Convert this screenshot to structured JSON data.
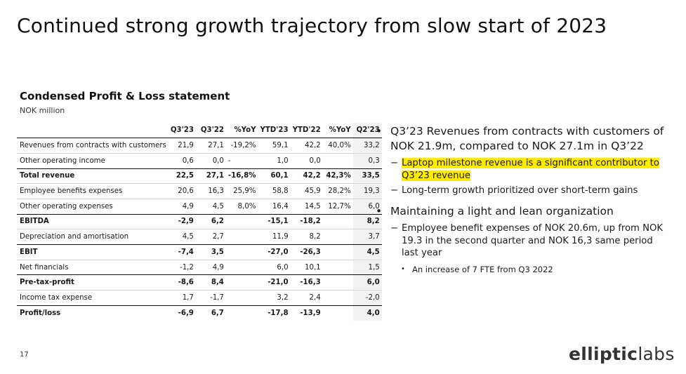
{
  "slide": {
    "title": "Continued strong growth trajectory from slow start of 2023",
    "page_number": "17"
  },
  "section": {
    "title": "Condensed Profit & Loss statement",
    "subtitle": "NOK million"
  },
  "table": {
    "headers": [
      "",
      "Q3'23",
      "Q3'22",
      "%YoY",
      "YTD'23",
      "YTD'22",
      "%YoY",
      "Q2'23"
    ],
    "rows": [
      {
        "label": "Revenues from contracts with customers",
        "cells": [
          "21,9",
          "27,1",
          "-19,2%",
          "59,1",
          "42,2",
          "40,0%",
          "33,2"
        ],
        "bold": false
      },
      {
        "label": "Other operating income",
        "cells": [
          "0,6",
          "0,0",
          "-",
          "1,0",
          "0,0",
          "",
          "0,3"
        ],
        "bold": false
      },
      {
        "label": "Total revenue",
        "cells": [
          "22,5",
          "27,1",
          "-16,8%",
          "60,1",
          "42,2",
          "42,3%",
          "33,5"
        ],
        "bold": true
      },
      {
        "label": "Employee benefits expenses",
        "cells": [
          "20,6",
          "16,3",
          "25,9%",
          "58,8",
          "45,9",
          "28,2%",
          "19,3"
        ],
        "bold": false
      },
      {
        "label": "Other operating expenses",
        "cells": [
          "4,9",
          "4,5",
          "8,0%",
          "16,4",
          "14,5",
          "12,7%",
          "6,0"
        ],
        "bold": false
      },
      {
        "label": "EBITDA",
        "cells": [
          "-2,9",
          "6,2",
          "",
          "-15,1",
          "-18,2",
          "",
          "8,2"
        ],
        "bold": true
      },
      {
        "label": "Depreciation and amortisation",
        "cells": [
          "4,5",
          "2,7",
          "",
          "11,9",
          "8,2",
          "",
          "3,7"
        ],
        "bold": false
      },
      {
        "label": "EBIT",
        "cells": [
          "-7,4",
          "3,5",
          "",
          "-27,0",
          "-26,3",
          "",
          "4,5"
        ],
        "bold": true
      },
      {
        "label": "Net financials",
        "cells": [
          "-1,2",
          "4,9",
          "",
          "6,0",
          "10,1",
          "",
          "1,5"
        ],
        "bold": false
      },
      {
        "label": "Pre-tax-profit",
        "cells": [
          "-8,6",
          "8,4",
          "",
          "-21,0",
          "-16,3",
          "",
          "6,0"
        ],
        "bold": true
      },
      {
        "label": "Income tax expense",
        "cells": [
          "1,7",
          "-1,7",
          "",
          "3,2",
          "2,4",
          "",
          "-2,0"
        ],
        "bold": false
      },
      {
        "label": "Profit/loss",
        "cells": [
          "-6,9",
          "6,7",
          "",
          "-17,8",
          "-13,9",
          "",
          "4,0"
        ],
        "bold": true
      }
    ]
  },
  "bullets": {
    "b1": {
      "text": "Q3’23 Revenues from contracts with customers of NOK 21.9m, compared to NOK 27.1m in Q3’22",
      "sub1": "Laptop milestone revenue is a significant contributor to Q3’23 revenue",
      "sub2": "Long-term growth prioritized over short-term gains"
    },
    "b2": {
      "text": "Maintaining a light and lean organization",
      "sub1": "Employee benefit expenses of NOK 20.6m, up from NOK 19.3 in the second quarter and NOK 16,3 same period last year",
      "sub1_1": "An increase of 7 FTE from Q3 2022"
    },
    "highlight_color": "#ffeb00"
  },
  "logo": {
    "part_bold": "elliptic",
    "part_light": "labs"
  }
}
